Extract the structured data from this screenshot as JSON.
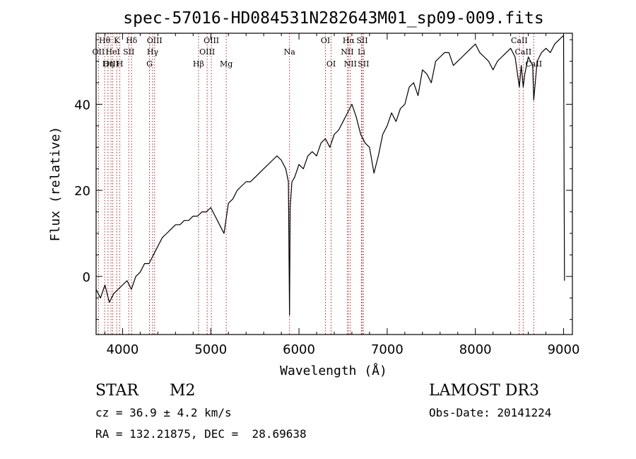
{
  "chart_data": {
    "type": "line",
    "title": "spec-57016-HD084531N282643M01_sp09-009.fits",
    "xlabel": "Wavelength (Å)",
    "ylabel": "Flux (relative)",
    "xlim": [
      3700,
      9100
    ],
    "ylim": [
      -13.5,
      56.5
    ],
    "xticks": [
      4000,
      5000,
      6000,
      7000,
      8000,
      9000
    ],
    "yticks": [
      0,
      20,
      40
    ],
    "colors": {
      "spectrum": "#000000",
      "line_marker": "#b22222",
      "axes": "#000000"
    },
    "series": [
      {
        "name": "spectrum",
        "x": [
          3700,
          3750,
          3800,
          3850,
          3900,
          3950,
          4000,
          4050,
          4100,
          4150,
          4200,
          4250,
          4300,
          4350,
          4400,
          4450,
          4500,
          4550,
          4600,
          4650,
          4700,
          4750,
          4800,
          4850,
          4900,
          4950,
          5000,
          5050,
          5100,
          5150,
          5200,
          5250,
          5300,
          5350,
          5400,
          5450,
          5500,
          5550,
          5600,
          5650,
          5700,
          5750,
          5800,
          5850,
          5880,
          5893,
          5900,
          5920,
          5950,
          6000,
          6050,
          6100,
          6150,
          6200,
          6250,
          6300,
          6350,
          6400,
          6450,
          6500,
          6550,
          6600,
          6650,
          6700,
          6750,
          6800,
          6850,
          6900,
          6950,
          7000,
          7050,
          7100,
          7150,
          7200,
          7250,
          7300,
          7350,
          7400,
          7450,
          7500,
          7550,
          7600,
          7650,
          7700,
          7750,
          7800,
          7850,
          7900,
          7950,
          8000,
          8050,
          8100,
          8150,
          8200,
          8250,
          8300,
          8350,
          8400,
          8450,
          8498,
          8520,
          8542,
          8560,
          8600,
          8650,
          8662,
          8700,
          8750,
          8800,
          8850,
          8900,
          8950,
          9000,
          9010
        ],
        "y": [
          -3,
          -5,
          -2,
          -6,
          -4,
          -3,
          -2,
          -1,
          -3,
          0,
          1,
          3,
          3,
          5,
          7,
          9,
          10,
          11,
          12,
          12,
          13,
          13,
          14,
          14,
          15,
          15,
          16,
          14,
          12,
          10,
          17,
          18,
          20,
          21,
          22,
          22,
          23,
          24,
          25,
          26,
          27,
          28,
          27,
          25,
          22,
          -9,
          16,
          22,
          23,
          26,
          25,
          28,
          29,
          28,
          31,
          32,
          30,
          33,
          34,
          36,
          38,
          40,
          37,
          33,
          31,
          30,
          24,
          28,
          33,
          35,
          38,
          36,
          39,
          40,
          44,
          45,
          42,
          48,
          47,
          45,
          50,
          51,
          52,
          52,
          49,
          50,
          51,
          52,
          53,
          54,
          52,
          51,
          50,
          48,
          50,
          51,
          52,
          53,
          51,
          44,
          49,
          44,
          47,
          51,
          49,
          41,
          50,
          52,
          53,
          52,
          54,
          55,
          56,
          -1
        ]
      }
    ],
    "lines": [
      {
        "label": "Hθ",
        "x": 3797,
        "row": 1
      },
      {
        "label": "OII",
        "x": 3727,
        "row": 2
      },
      {
        "label": "OIII",
        "x": 3869,
        "row": 3
      },
      {
        "label": "K",
        "x": 3934,
        "row": 1
      },
      {
        "label": "HeI",
        "x": 3889,
        "row": 2
      },
      {
        "label": "Hη",
        "x": 3835,
        "row": 3
      },
      {
        "label": "SII",
        "x": 4070,
        "row": 2
      },
      {
        "label": "H",
        "x": 3969,
        "row": 3
      },
      {
        "label": "Hδ",
        "x": 4102,
        "row": 1
      },
      {
        "label": "OIII",
        "x": 4363,
        "row": 1
      },
      {
        "label": "Hγ",
        "x": 4341,
        "row": 2
      },
      {
        "label": "G",
        "x": 4305,
        "row": 3
      },
      {
        "label": "OIII",
        "x": 5007,
        "row": 1
      },
      {
        "label": "OIII",
        "x": 4959,
        "row": 2
      },
      {
        "label": "Hβ",
        "x": 4861,
        "row": 3
      },
      {
        "label": "Mg",
        "x": 5175,
        "row": 3
      },
      {
        "label": "Na",
        "x": 5893,
        "row": 2
      },
      {
        "label": "OI",
        "x": 6300,
        "row": 1
      },
      {
        "label": "OI",
        "x": 6364,
        "row": 3
      },
      {
        "label": "Hα",
        "x": 6563,
        "row": 1
      },
      {
        "label": "SII",
        "x": 6716,
        "row": 1
      },
      {
        "label": "NII",
        "x": 6548,
        "row": 2
      },
      {
        "label": "Li",
        "x": 6708,
        "row": 2
      },
      {
        "label": "NII",
        "x": 6583,
        "row": 3
      },
      {
        "label": "SII",
        "x": 6731,
        "row": 3
      },
      {
        "label": "CaII",
        "x": 8498,
        "row": 1
      },
      {
        "label": "CaII",
        "x": 8542,
        "row": 2
      },
      {
        "label": "CaII",
        "x": 8662,
        "row": 3
      }
    ]
  },
  "info": {
    "class_label": "STAR",
    "subclass": "M2",
    "survey": "LAMOST DR3",
    "cz_line": "cz = 36.9 ± 4.2 km/s",
    "obs_date": "Obs-Date: 20141224",
    "coords": "RA = 132.21875, DEC =  28.69638"
  }
}
